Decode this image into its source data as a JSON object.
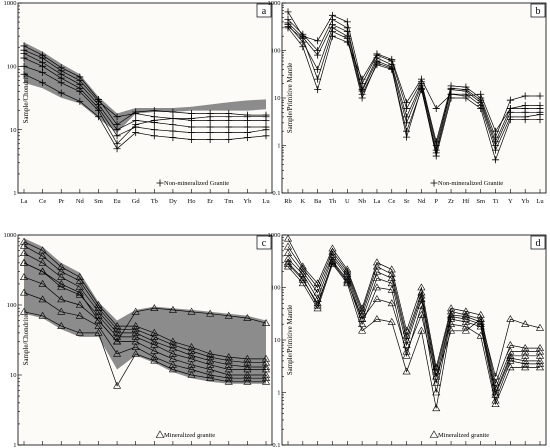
{
  "chart_data": [
    {
      "id": "a",
      "type": "line",
      "panel_label": "a",
      "ylabel": "Sample/Chondrite",
      "legend": "Non-mineralized Granite",
      "legend_position": "bottom-right",
      "marker": "plus",
      "log_y": true,
      "ylim": [
        1,
        1000
      ],
      "ytick_labels": [
        "1",
        "10",
        "100",
        "1000"
      ],
      "categories": [
        "La",
        "Ce",
        "Pr",
        "Nd",
        "Sm",
        "Eu",
        "Gd",
        "Tb",
        "Dy",
        "Ho",
        "Er",
        "Tm",
        "Yb",
        "Lu"
      ],
      "band": true,
      "series": [
        {
          "values": [
            210,
            150,
            95,
            68,
            30,
            12,
            19,
            20,
            19,
            18,
            18,
            18,
            17,
            17
          ]
        },
        {
          "values": [
            180,
            135,
            85,
            60,
            28,
            16,
            18,
            16,
            15,
            14,
            14,
            14,
            14,
            14
          ]
        },
        {
          "values": [
            160,
            115,
            75,
            52,
            25,
            10,
            14,
            13,
            12,
            11,
            11,
            11,
            11,
            11
          ]
        },
        {
          "values": [
            135,
            100,
            65,
            45,
            22,
            8,
            11,
            10,
            9.5,
            9,
            9,
            9,
            9,
            10
          ]
        },
        {
          "values": [
            100,
            80,
            55,
            40,
            20,
            6,
            12,
            14,
            15,
            15,
            16,
            16,
            16,
            16
          ]
        },
        {
          "values": [
            75,
            55,
            38,
            28,
            16,
            5,
            9,
            8,
            7.5,
            7,
            7,
            7,
            7.5,
            8
          ]
        }
      ],
      "band_upper": [
        240,
        170,
        110,
        75,
        33,
        18,
        22,
        22,
        22,
        23,
        25,
        27,
        29,
        30
      ],
      "band_lower": [
        55,
        45,
        32,
        26,
        15,
        9,
        18,
        19,
        19,
        20,
        20,
        20,
        20,
        21
      ]
    },
    {
      "id": "b",
      "type": "line",
      "panel_label": "b",
      "ylabel": "Sample/Primitive Mantle",
      "legend": "Non-mineralized Granite",
      "legend_position": "bottom-right",
      "marker": "plus",
      "log_y": true,
      "ylim": [
        0.1,
        1000
      ],
      "ytick_labels": [
        "0.1",
        "1",
        "10",
        "100",
        "1000"
      ],
      "categories": [
        "Rb",
        "K",
        "Ba",
        "Th",
        "U",
        "Nb",
        "La",
        "Ce",
        "Sr",
        "Nd",
        "P",
        "Zr",
        "Hf",
        "Sm",
        "Ti",
        "Y",
        "Yb",
        "Lu"
      ],
      "band": false,
      "series": [
        {
          "values": [
            650,
            200,
            160,
            550,
            400,
            20,
            80,
            60,
            6,
            22,
            1.2,
            18,
            17,
            10,
            1.5,
            9,
            11,
            11
          ]
        },
        {
          "values": [
            450,
            220,
            100,
            450,
            300,
            15,
            70,
            50,
            4,
            20,
            1,
            16,
            15,
            9,
            1.2,
            6,
            6,
            6
          ]
        },
        {
          "values": [
            380,
            190,
            80,
            350,
            250,
            14,
            60,
            45,
            3,
            18,
            0.8,
            15,
            14,
            8,
            1,
            5,
            5,
            5
          ]
        },
        {
          "values": [
            350,
            150,
            40,
            300,
            200,
            12,
            50,
            40,
            2,
            15,
            0.7,
            12,
            12,
            7,
            0.8,
            4,
            4,
            4.5
          ]
        },
        {
          "values": [
            320,
            180,
            25,
            250,
            180,
            10,
            55,
            42,
            1.5,
            16,
            0.6,
            10,
            10,
            6,
            0.5,
            3.5,
            3.5,
            3.5
          ]
        },
        {
          "values": [
            300,
            120,
            15,
            200,
            150,
            25,
            85,
            65,
            8,
            25,
            6,
            12,
            11,
            12,
            2,
            6,
            7,
            7
          ]
        }
      ]
    },
    {
      "id": "c",
      "type": "line",
      "panel_label": "c",
      "ylabel": "Sample/Chondrite",
      "legend": "Mineralized granite",
      "legend_position": "bottom-right",
      "marker": "triangle",
      "log_y": true,
      "ylim": [
        1,
        1000
      ],
      "ytick_labels": [
        "1",
        "10",
        "100",
        "1000"
      ],
      "categories": [
        "La",
        "Ce",
        "Pr",
        "Nd",
        "Sm",
        "Eu",
        "Gd",
        "Tb",
        "Dy",
        "Ho",
        "Er",
        "Tm",
        "Yb",
        "Lu"
      ],
      "band": true,
      "series": [
        {
          "values": [
            800,
            600,
            350,
            250,
            100,
            50,
            50,
            40,
            30,
            25,
            20,
            18,
            17,
            17
          ]
        },
        {
          "values": [
            700,
            500,
            300,
            220,
            90,
            45,
            45,
            35,
            27,
            22,
            18,
            16,
            15,
            15
          ]
        },
        {
          "values": [
            550,
            400,
            250,
            180,
            80,
            40,
            40,
            30,
            24,
            19,
            16,
            14,
            13,
            13
          ]
        },
        {
          "values": [
            400,
            300,
            180,
            140,
            70,
            35,
            35,
            27,
            20,
            17,
            14,
            12,
            12,
            12
          ]
        },
        {
          "values": [
            250,
            200,
            120,
            100,
            60,
            30,
            30,
            22,
            17,
            14,
            12,
            10,
            10,
            10
          ]
        },
        {
          "values": [
            150,
            120,
            80,
            70,
            50,
            20,
            25,
            18,
            14,
            12,
            10,
            9,
            9,
            9
          ]
        },
        {
          "values": [
            80,
            70,
            50,
            40,
            40,
            7,
            20,
            16,
            12,
            10,
            9,
            8,
            8,
            8
          ]
        },
        {
          "values": [
            400,
            300,
            200,
            150,
            60,
            30,
            80,
            90,
            85,
            80,
            75,
            70,
            65,
            55
          ]
        }
      ],
      "band_upper": [
        900,
        680,
        400,
        290,
        110,
        60,
        85,
        95,
        90,
        85,
        80,
        75,
        70,
        60
      ],
      "band_lower": [
        75,
        65,
        45,
        35,
        35,
        12,
        19,
        15,
        11,
        9,
        8,
        7.5,
        7.5,
        7.5
      ]
    },
    {
      "id": "d",
      "type": "line",
      "panel_label": "d",
      "ylabel": "Sample/Primitive Mantle",
      "legend": "Mineralized granite",
      "legend_position": "bottom-right",
      "marker": "triangle",
      "log_y": true,
      "ylim": [
        0.1,
        1000
      ],
      "ytick_labels": [
        "0.1",
        "1",
        "10",
        "100",
        "1000"
      ],
      "categories": [
        "Rb",
        "K",
        "Ba",
        "Th",
        "U",
        "Nb",
        "La",
        "Ce",
        "Sr",
        "Nd",
        "P",
        "Zr",
        "Hf",
        "Sm",
        "Ti",
        "Y",
        "Yb",
        "Lu"
      ],
      "band": false,
      "series": [
        {
          "values": [
            850,
            250,
            120,
            550,
            220,
            40,
            300,
            220,
            15,
            100,
            3,
            40,
            35,
            30,
            1.5,
            8,
            7,
            7
          ]
        },
        {
          "values": [
            600,
            230,
            100,
            480,
            200,
            35,
            250,
            180,
            12,
            80,
            2.5,
            35,
            30,
            25,
            1.2,
            6,
            6,
            6
          ]
        },
        {
          "values": [
            450,
            200,
            80,
            420,
            180,
            30,
            200,
            150,
            10,
            70,
            2,
            30,
            28,
            22,
            1,
            5,
            5,
            5
          ]
        },
        {
          "values": [
            350,
            180,
            60,
            380,
            160,
            25,
            150,
            120,
            8,
            60,
            1.5,
            28,
            25,
            20,
            0.9,
            4.5,
            4,
            4
          ]
        },
        {
          "values": [
            300,
            150,
            45,
            320,
            140,
            20,
            100,
            90,
            5,
            45,
            1,
            25,
            22,
            18,
            0.7,
            4,
            3.5,
            3.5
          ]
        },
        {
          "values": [
            250,
            120,
            40,
            280,
            120,
            15,
            25,
            22,
            2.5,
            15,
            0.5,
            20,
            18,
            12,
            0.6,
            3,
            3,
            3
          ]
        },
        {
          "values": [
            280,
            140,
            50,
            300,
            130,
            25,
            60,
            50,
            6,
            30,
            2,
            15,
            15,
            25,
            2,
            25,
            20,
            17
          ]
        }
      ]
    }
  ]
}
